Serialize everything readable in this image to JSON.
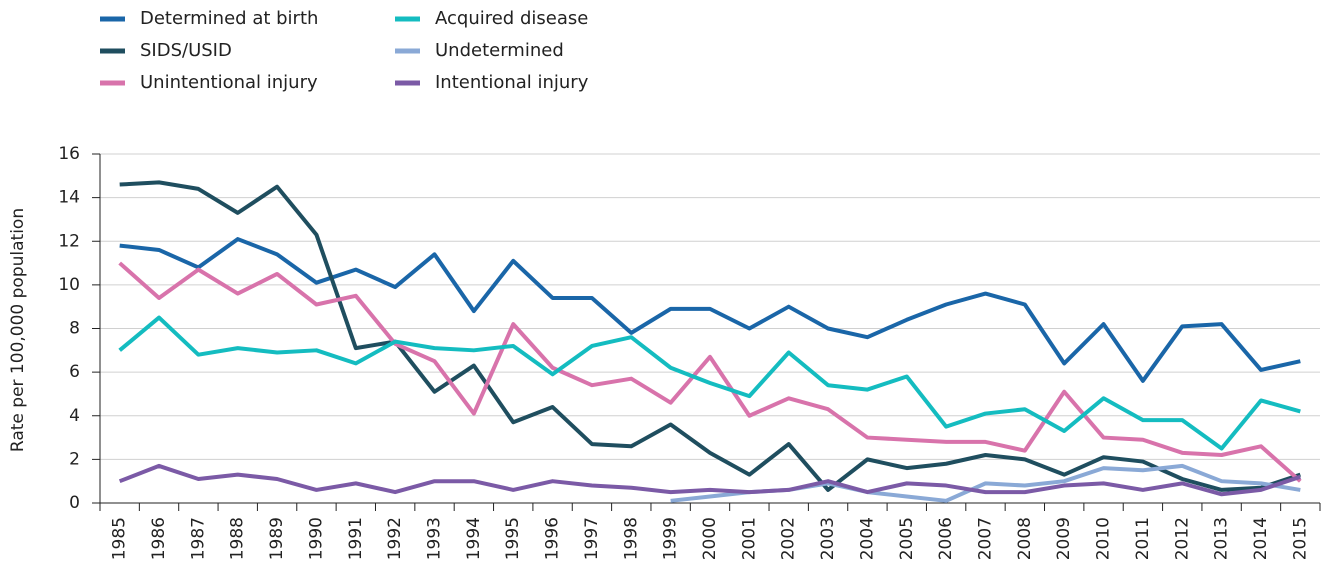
{
  "chart_data": {
    "type": "line",
    "y_label": "Rate per 100,000 population",
    "categories": [
      "1985",
      "1986",
      "1987",
      "1988",
      "1989",
      "1990",
      "1991",
      "1992",
      "1993",
      "1994",
      "1995",
      "1996",
      "1997",
      "1998",
      "1999",
      "2000",
      "2001",
      "2002",
      "2003",
      "2004",
      "2005",
      "2006",
      "2007",
      "2008",
      "2009",
      "2010",
      "2011",
      "2012",
      "2013",
      "2014",
      "2015"
    ],
    "series": [
      {
        "name": "Determined at birth",
        "color": "#1a66a8",
        "values": [
          11.8,
          11.6,
          10.8,
          12.1,
          11.4,
          10.1,
          10.7,
          9.9,
          11.4,
          8.8,
          11.1,
          9.4,
          9.4,
          7.8,
          8.9,
          8.9,
          8.0,
          9.0,
          8.0,
          7.6,
          8.4,
          9.1,
          9.6,
          9.1,
          6.4,
          8.2,
          5.6,
          8.1,
          8.2,
          6.1,
          6.5
        ]
      },
      {
        "name": "SIDS/USID",
        "color": "#1f4e5f",
        "values": [
          14.6,
          14.7,
          14.4,
          13.3,
          14.5,
          12.3,
          7.1,
          7.4,
          5.1,
          6.3,
          3.7,
          4.4,
          2.7,
          2.6,
          3.6,
          2.3,
          1.3,
          2.7,
          0.6,
          2.0,
          1.6,
          1.8,
          2.2,
          2.0,
          1.3,
          2.1,
          1.9,
          1.1,
          0.6,
          0.7,
          1.3
        ]
      },
      {
        "name": "Unintentional injury",
        "color": "#d873ab",
        "values": [
          11.0,
          9.4,
          10.7,
          9.6,
          10.5,
          9.1,
          9.5,
          7.3,
          6.5,
          4.1,
          8.2,
          6.2,
          5.4,
          5.7,
          4.6,
          6.7,
          4.0,
          4.8,
          4.3,
          3.0,
          2.9,
          2.8,
          2.8,
          2.4,
          5.1,
          3.0,
          2.9,
          2.3,
          2.2,
          2.6,
          1.0
        ]
      },
      {
        "name": "Acquired disease",
        "color": "#14bcc0",
        "values": [
          7.0,
          8.5,
          6.8,
          7.1,
          6.9,
          7.0,
          6.4,
          7.4,
          7.1,
          7.0,
          7.2,
          5.9,
          7.2,
          7.6,
          6.2,
          5.5,
          4.9,
          6.9,
          5.4,
          5.2,
          5.8,
          3.5,
          4.1,
          4.3,
          3.3,
          4.8,
          3.8,
          3.8,
          2.5,
          4.7,
          4.2
        ]
      },
      {
        "name": "Undetermined",
        "color": "#8aa9d6",
        "values": [
          null,
          null,
          null,
          null,
          null,
          null,
          null,
          null,
          null,
          null,
          null,
          null,
          null,
          null,
          0.1,
          0.3,
          0.5,
          0.6,
          0.9,
          0.5,
          0.3,
          0.1,
          0.9,
          0.8,
          1.0,
          1.6,
          1.5,
          1.7,
          1.0,
          0.9,
          0.6
        ]
      },
      {
        "name": "Intentional injury",
        "color": "#7b5aa6",
        "values": [
          1.0,
          1.7,
          1.1,
          1.3,
          1.1,
          0.6,
          0.9,
          0.5,
          1.0,
          1.0,
          0.6,
          1.0,
          0.8,
          0.7,
          0.5,
          0.6,
          0.5,
          0.6,
          1.0,
          0.5,
          0.9,
          0.8,
          0.5,
          0.5,
          0.8,
          0.9,
          0.6,
          0.9,
          0.4,
          0.6,
          1.2
        ]
      }
    ],
    "ylim": [
      0,
      16
    ],
    "yticks": [
      0,
      2,
      4,
      6,
      8,
      10,
      12,
      14,
      16
    ],
    "grid": true
  }
}
